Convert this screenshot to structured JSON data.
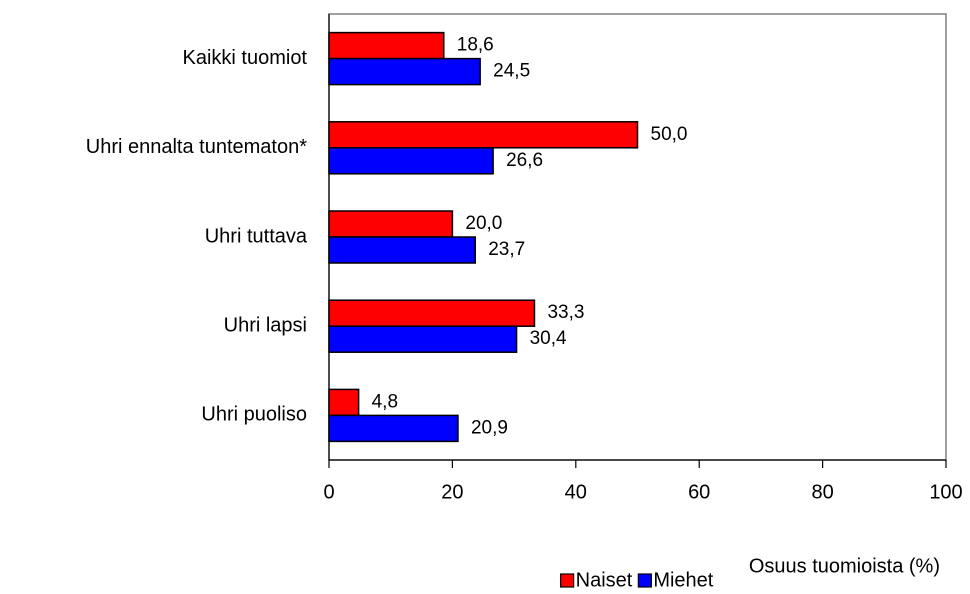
{
  "chart_data": {
    "type": "bar",
    "orientation": "horizontal",
    "categories": [
      "Kaikki tuomiot",
      "Uhri ennalta tuntematon*",
      "Uhri tuttava",
      "Uhri lapsi",
      "Uhri puoliso"
    ],
    "series": [
      {
        "name": "Naiset",
        "color": "#ff0000",
        "values": [
          18.6,
          50.0,
          20.0,
          33.3,
          4.8
        ],
        "value_labels": [
          "18,6",
          "50,0",
          "20,0",
          "33,3",
          "4,8"
        ]
      },
      {
        "name": "Miehet",
        "color": "#0000ff",
        "values": [
          24.5,
          26.6,
          23.7,
          30.4,
          20.9
        ],
        "value_labels": [
          "24,5",
          "26,6",
          "23,7",
          "30,4",
          "20,9"
        ]
      }
    ],
    "xlabel": "Osuus tuomioista (%)",
    "xlim": [
      0,
      100
    ],
    "xticks": [
      0,
      20,
      40,
      60,
      80,
      100
    ],
    "grid": false,
    "legend": "bottom"
  }
}
